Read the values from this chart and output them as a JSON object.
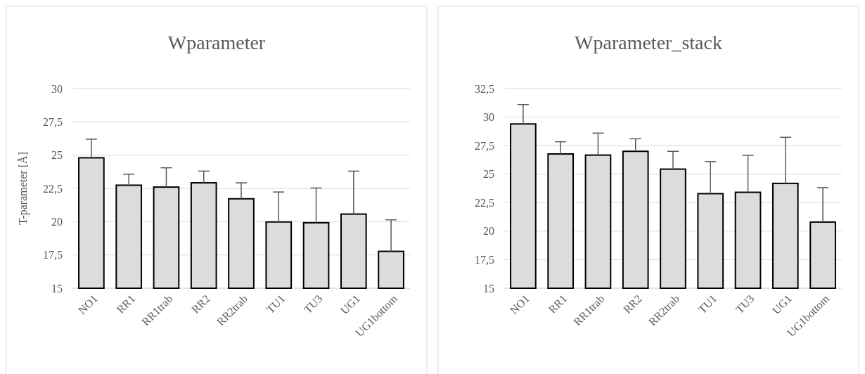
{
  "chart_data": [
    {
      "type": "bar",
      "title": "Wparameter",
      "ylabel": "T-parameter [Å]",
      "categories": [
        "NO1",
        "RR1",
        "RR1trab",
        "RR2",
        "RR2trab",
        "TU1",
        "TU3",
        "UG1",
        "UG1bottom"
      ],
      "values": [
        24.8,
        22.74,
        22.6,
        22.92,
        21.72,
        19.98,
        19.92,
        20.57,
        17.77
      ],
      "color": "#dcdcdc",
      "errors": [
        [
          24.8,
          26.2
        ],
        [
          22.74,
          23.57
        ],
        [
          22.6,
          24.05
        ],
        [
          22.92,
          23.8
        ],
        [
          21.72,
          22.92
        ],
        [
          19.98,
          22.23
        ],
        [
          19.92,
          22.53
        ],
        [
          20.57,
          23.8
        ],
        [
          17.77,
          20.14
        ]
      ],
      "ylim": [
        15,
        30
      ],
      "yticks": [
        15,
        {
          "value": 17.5,
          "label": "17,5"
        },
        20,
        {
          "value": 22.5,
          "label": "22,5"
        },
        25,
        {
          "value": 27.5,
          "label": "27,5"
        },
        30
      ],
      "grid": "y"
    },
    {
      "type": "bar",
      "title": "Wparameter_stack",
      "categories": [
        "NO1",
        "RR1",
        "RR1trab",
        "RR2",
        "RR2trab",
        "TU1",
        "TU3",
        "UG1",
        "UG1bottom"
      ],
      "values": [
        29.4,
        26.77,
        26.67,
        27.0,
        25.44,
        23.29,
        23.41,
        24.19,
        20.8
      ],
      "color": "#dcdcdc",
      "errors": [
        [
          29.4,
          31.1
        ],
        [
          26.77,
          27.84
        ],
        [
          26.67,
          28.6
        ],
        [
          27.0,
          28.1
        ],
        [
          25.44,
          27.0
        ],
        [
          23.29,
          26.1
        ],
        [
          23.41,
          26.65
        ],
        [
          24.19,
          28.23
        ],
        [
          20.8,
          23.82
        ]
      ],
      "ylim": [
        15,
        32.5
      ],
      "yticks": [
        15,
        {
          "value": 17.5,
          "label": "17,5"
        },
        20,
        {
          "value": 22.5,
          "label": "22,5"
        },
        25,
        {
          "value": 27.5,
          "label": "27,5"
        },
        30,
        {
          "value": 32.5,
          "label": "32,5"
        }
      ],
      "grid": "y"
    }
  ]
}
